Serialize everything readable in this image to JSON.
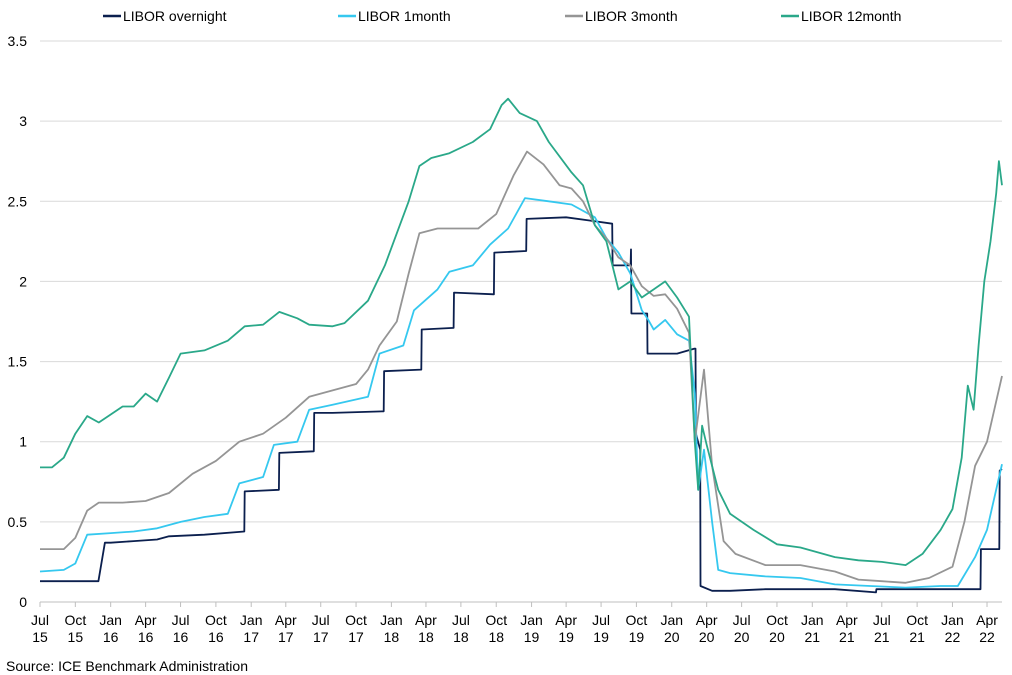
{
  "source_note": "Source: ICE Benchmark Administration",
  "chart_data": {
    "type": "line",
    "ylim": [
      0,
      3.5
    ],
    "y_ticks": [
      "0",
      "0.5",
      "1",
      "1.5",
      "2",
      "2.5",
      "3",
      "3.5"
    ],
    "x_ticks": [
      {
        "month": "Jul",
        "year": "15"
      },
      {
        "month": "Oct",
        "year": "15"
      },
      {
        "month": "Jan",
        "year": "16"
      },
      {
        "month": "Apr",
        "year": "16"
      },
      {
        "month": "Jul",
        "year": "16"
      },
      {
        "month": "Oct",
        "year": "16"
      },
      {
        "month": "Jan",
        "year": "17"
      },
      {
        "month": "Apr",
        "year": "17"
      },
      {
        "month": "Jul",
        "year": "17"
      },
      {
        "month": "Oct",
        "year": "17"
      },
      {
        "month": "Jan",
        "year": "18"
      },
      {
        "month": "Apr",
        "year": "18"
      },
      {
        "month": "Jul",
        "year": "18"
      },
      {
        "month": "Oct",
        "year": "18"
      },
      {
        "month": "Jan",
        "year": "19"
      },
      {
        "month": "Apr",
        "year": "19"
      },
      {
        "month": "Jul",
        "year": "19"
      },
      {
        "month": "Oct",
        "year": "19"
      },
      {
        "month": "Jan",
        "year": "20"
      },
      {
        "month": "Apr",
        "year": "20"
      },
      {
        "month": "Jul",
        "year": "20"
      },
      {
        "month": "Oct",
        "year": "20"
      },
      {
        "month": "Jan",
        "year": "21"
      },
      {
        "month": "Apr",
        "year": "21"
      },
      {
        "month": "Jul",
        "year": "21"
      },
      {
        "month": "Oct",
        "year": "21"
      },
      {
        "month": "Jan",
        "year": "22"
      },
      {
        "month": "Apr",
        "year": "22"
      }
    ],
    "grid": "horizontal",
    "legend_position": "top",
    "series": [
      {
        "name": "LIBOR overnight",
        "color": "#0b1f4e",
        "points": [
          [
            "2015-07-01",
            0.13
          ],
          [
            "2015-09-01",
            0.13
          ],
          [
            "2015-10-01",
            0.13
          ],
          [
            "2015-11-30",
            0.13
          ],
          [
            "2015-12-17",
            0.37
          ],
          [
            "2016-01-01",
            0.37
          ],
          [
            "2016-03-01",
            0.38
          ],
          [
            "2016-05-01",
            0.39
          ],
          [
            "2016-06-01",
            0.41
          ],
          [
            "2016-09-01",
            0.42
          ],
          [
            "2016-12-14",
            0.44
          ],
          [
            "2016-12-15",
            0.69
          ],
          [
            "2017-03-14",
            0.7
          ],
          [
            "2017-03-15",
            0.93
          ],
          [
            "2017-06-13",
            0.94
          ],
          [
            "2017-06-14",
            1.18
          ],
          [
            "2017-08-01",
            1.18
          ],
          [
            "2017-12-12",
            1.19
          ],
          [
            "2017-12-13",
            1.44
          ],
          [
            "2018-03-20",
            1.45
          ],
          [
            "2018-03-21",
            1.7
          ],
          [
            "2018-06-12",
            1.71
          ],
          [
            "2018-06-13",
            1.93
          ],
          [
            "2018-09-25",
            1.92
          ],
          [
            "2018-09-26",
            2.18
          ],
          [
            "2018-12-18",
            2.19
          ],
          [
            "2018-12-19",
            2.39
          ],
          [
            "2019-04-01",
            2.4
          ],
          [
            "2019-06-01",
            2.38
          ],
          [
            "2019-07-30",
            2.36
          ],
          [
            "2019-07-31",
            2.1
          ],
          [
            "2019-09-16",
            2.1
          ],
          [
            "2019-09-17",
            2.2
          ],
          [
            "2019-09-18",
            1.8
          ],
          [
            "2019-10-29",
            1.8
          ],
          [
            "2019-10-30",
            1.55
          ],
          [
            "2020-01-15",
            1.55
          ],
          [
            "2020-02-28",
            1.58
          ],
          [
            "2020-03-03",
            1.58
          ],
          [
            "2020-03-04",
            1.05
          ],
          [
            "2020-03-15",
            0.95
          ],
          [
            "2020-03-16",
            0.1
          ],
          [
            "2020-04-15",
            0.07
          ],
          [
            "2020-06-01",
            0.07
          ],
          [
            "2020-09-01",
            0.08
          ],
          [
            "2020-12-01",
            0.08
          ],
          [
            "2021-03-01",
            0.08
          ],
          [
            "2021-06-16",
            0.06
          ],
          [
            "2021-06-17",
            0.08
          ],
          [
            "2021-09-01",
            0.08
          ],
          [
            "2021-12-01",
            0.08
          ],
          [
            "2022-03-15",
            0.08
          ],
          [
            "2022-03-16",
            0.33
          ],
          [
            "2022-05-03",
            0.33
          ],
          [
            "2022-05-04",
            0.82
          ],
          [
            "2022-05-10",
            0.83
          ]
        ]
      },
      {
        "name": "LIBOR 1month",
        "color": "#35c8ef",
        "points": [
          [
            "2015-07-01",
            0.19
          ],
          [
            "2015-09-01",
            0.2
          ],
          [
            "2015-10-01",
            0.24
          ],
          [
            "2015-11-01",
            0.42
          ],
          [
            "2016-01-01",
            0.43
          ],
          [
            "2016-03-01",
            0.44
          ],
          [
            "2016-05-01",
            0.46
          ],
          [
            "2016-07-01",
            0.5
          ],
          [
            "2016-09-01",
            0.53
          ],
          [
            "2016-11-01",
            0.55
          ],
          [
            "2016-12-01",
            0.74
          ],
          [
            "2017-02-01",
            0.78
          ],
          [
            "2017-03-01",
            0.98
          ],
          [
            "2017-05-01",
            1.0
          ],
          [
            "2017-06-01",
            1.2
          ],
          [
            "2017-08-01",
            1.23
          ],
          [
            "2017-11-01",
            1.28
          ],
          [
            "2017-12-01",
            1.55
          ],
          [
            "2018-02-01",
            1.6
          ],
          [
            "2018-03-01",
            1.82
          ],
          [
            "2018-05-01",
            1.95
          ],
          [
            "2018-06-01",
            2.06
          ],
          [
            "2018-08-01",
            2.1
          ],
          [
            "2018-09-15",
            2.23
          ],
          [
            "2018-11-01",
            2.33
          ],
          [
            "2018-12-15",
            2.52
          ],
          [
            "2019-02-15",
            2.5
          ],
          [
            "2019-04-15",
            2.48
          ],
          [
            "2019-06-15",
            2.4
          ],
          [
            "2019-07-15",
            2.27
          ],
          [
            "2019-08-15",
            2.18
          ],
          [
            "2019-09-15",
            2.05
          ],
          [
            "2019-10-15",
            1.82
          ],
          [
            "2019-11-01",
            1.76
          ],
          [
            "2019-11-15",
            1.7
          ],
          [
            "2019-12-15",
            1.76
          ],
          [
            "2020-01-15",
            1.67
          ],
          [
            "2020-02-15",
            1.63
          ],
          [
            "2020-03-01",
            1.3
          ],
          [
            "2020-03-10",
            0.7
          ],
          [
            "2020-03-25",
            0.95
          ],
          [
            "2020-04-15",
            0.5
          ],
          [
            "2020-05-01",
            0.2
          ],
          [
            "2020-06-01",
            0.18
          ],
          [
            "2020-09-01",
            0.16
          ],
          [
            "2020-12-01",
            0.15
          ],
          [
            "2021-03-01",
            0.11
          ],
          [
            "2021-06-01",
            0.1
          ],
          [
            "2021-09-01",
            0.09
          ],
          [
            "2021-12-01",
            0.1
          ],
          [
            "2022-01-15",
            0.1
          ],
          [
            "2022-03-01",
            0.28
          ],
          [
            "2022-04-01",
            0.45
          ],
          [
            "2022-05-10",
            0.86
          ]
        ]
      },
      {
        "name": "LIBOR 3month",
        "color": "#959595",
        "points": [
          [
            "2015-07-01",
            0.33
          ],
          [
            "2015-09-01",
            0.33
          ],
          [
            "2015-10-01",
            0.4
          ],
          [
            "2015-11-01",
            0.57
          ],
          [
            "2015-12-01",
            0.62
          ],
          [
            "2016-02-01",
            0.62
          ],
          [
            "2016-04-01",
            0.63
          ],
          [
            "2016-06-01",
            0.68
          ],
          [
            "2016-08-01",
            0.8
          ],
          [
            "2016-10-01",
            0.88
          ],
          [
            "2016-12-01",
            1.0
          ],
          [
            "2017-02-01",
            1.05
          ],
          [
            "2017-04-01",
            1.15
          ],
          [
            "2017-06-01",
            1.28
          ],
          [
            "2017-08-01",
            1.32
          ],
          [
            "2017-10-01",
            1.36
          ],
          [
            "2017-11-01",
            1.45
          ],
          [
            "2017-12-01",
            1.6
          ],
          [
            "2018-01-15",
            1.75
          ],
          [
            "2018-02-15",
            2.05
          ],
          [
            "2018-03-15",
            2.3
          ],
          [
            "2018-05-01",
            2.33
          ],
          [
            "2018-06-15",
            2.33
          ],
          [
            "2018-08-15",
            2.33
          ],
          [
            "2018-10-01",
            2.42
          ],
          [
            "2018-11-15",
            2.66
          ],
          [
            "2018-12-20",
            2.81
          ],
          [
            "2019-02-01",
            2.73
          ],
          [
            "2019-03-15",
            2.6
          ],
          [
            "2019-04-15",
            2.58
          ],
          [
            "2019-05-15",
            2.5
          ],
          [
            "2019-06-15",
            2.35
          ],
          [
            "2019-07-15",
            2.27
          ],
          [
            "2019-08-15",
            2.15
          ],
          [
            "2019-09-15",
            2.1
          ],
          [
            "2019-10-15",
            1.97
          ],
          [
            "2019-11-15",
            1.91
          ],
          [
            "2019-12-15",
            1.92
          ],
          [
            "2020-01-15",
            1.83
          ],
          [
            "2020-02-15",
            1.68
          ],
          [
            "2020-03-01",
            1.0
          ],
          [
            "2020-03-25",
            1.45
          ],
          [
            "2020-04-15",
            0.85
          ],
          [
            "2020-05-15",
            0.38
          ],
          [
            "2020-06-15",
            0.3
          ],
          [
            "2020-09-01",
            0.23
          ],
          [
            "2020-12-01",
            0.23
          ],
          [
            "2021-03-01",
            0.19
          ],
          [
            "2021-05-01",
            0.14
          ],
          [
            "2021-07-01",
            0.13
          ],
          [
            "2021-09-01",
            0.12
          ],
          [
            "2021-11-01",
            0.15
          ],
          [
            "2022-01-01",
            0.22
          ],
          [
            "2022-02-01",
            0.5
          ],
          [
            "2022-03-01",
            0.85
          ],
          [
            "2022-04-01",
            1.0
          ],
          [
            "2022-04-20",
            1.2
          ],
          [
            "2022-05-10",
            1.41
          ]
        ]
      },
      {
        "name": "LIBOR 12month",
        "color": "#2aa889",
        "points": [
          [
            "2015-07-01",
            0.84
          ],
          [
            "2015-08-01",
            0.84
          ],
          [
            "2015-09-01",
            0.9
          ],
          [
            "2015-10-01",
            1.05
          ],
          [
            "2015-11-01",
            1.16
          ],
          [
            "2015-12-01",
            1.12
          ],
          [
            "2016-01-01",
            1.17
          ],
          [
            "2016-02-01",
            1.22
          ],
          [
            "2016-03-01",
            1.22
          ],
          [
            "2016-04-01",
            1.3
          ],
          [
            "2016-05-01",
            1.25
          ],
          [
            "2016-06-01",
            1.4
          ],
          [
            "2016-07-01",
            1.55
          ],
          [
            "2016-09-01",
            1.57
          ],
          [
            "2016-11-01",
            1.63
          ],
          [
            "2016-12-15",
            1.72
          ],
          [
            "2017-02-01",
            1.73
          ],
          [
            "2017-03-15",
            1.81
          ],
          [
            "2017-05-01",
            1.77
          ],
          [
            "2017-06-01",
            1.73
          ],
          [
            "2017-08-01",
            1.72
          ],
          [
            "2017-09-01",
            1.74
          ],
          [
            "2017-11-01",
            1.88
          ],
          [
            "2017-12-15",
            2.1
          ],
          [
            "2018-01-15",
            2.3
          ],
          [
            "2018-02-15",
            2.5
          ],
          [
            "2018-03-15",
            2.72
          ],
          [
            "2018-04-15",
            2.77
          ],
          [
            "2018-06-01",
            2.8
          ],
          [
            "2018-08-01",
            2.87
          ],
          [
            "2018-09-15",
            2.95
          ],
          [
            "2018-10-15",
            3.1
          ],
          [
            "2018-11-01",
            3.14
          ],
          [
            "2018-12-01",
            3.05
          ],
          [
            "2019-01-15",
            3.0
          ],
          [
            "2019-02-15",
            2.87
          ],
          [
            "2019-04-15",
            2.68
          ],
          [
            "2019-05-15",
            2.6
          ],
          [
            "2019-06-15",
            2.35
          ],
          [
            "2019-07-15",
            2.25
          ],
          [
            "2019-08-15",
            1.95
          ],
          [
            "2019-09-15",
            2.0
          ],
          [
            "2019-10-15",
            1.9
          ],
          [
            "2019-11-15",
            1.95
          ],
          [
            "2019-12-15",
            2.0
          ],
          [
            "2020-01-15",
            1.9
          ],
          [
            "2020-02-15",
            1.78
          ],
          [
            "2020-03-01",
            1.0
          ],
          [
            "2020-03-10",
            0.7
          ],
          [
            "2020-03-20",
            1.1
          ],
          [
            "2020-04-01",
            0.98
          ],
          [
            "2020-05-01",
            0.7
          ],
          [
            "2020-06-01",
            0.55
          ],
          [
            "2020-08-01",
            0.45
          ],
          [
            "2020-10-01",
            0.36
          ],
          [
            "2020-12-01",
            0.34
          ],
          [
            "2021-03-01",
            0.28
          ],
          [
            "2021-05-01",
            0.26
          ],
          [
            "2021-07-01",
            0.25
          ],
          [
            "2021-09-01",
            0.23
          ],
          [
            "2021-10-15",
            0.3
          ],
          [
            "2021-12-01",
            0.45
          ],
          [
            "2022-01-01",
            0.58
          ],
          [
            "2022-01-25",
            0.9
          ],
          [
            "2022-02-10",
            1.35
          ],
          [
            "2022-02-25",
            1.2
          ],
          [
            "2022-03-10",
            1.6
          ],
          [
            "2022-03-25",
            2.0
          ],
          [
            "2022-04-10",
            2.25
          ],
          [
            "2022-04-25",
            2.55
          ],
          [
            "2022-05-02",
            2.75
          ],
          [
            "2022-05-10",
            2.6
          ]
        ]
      }
    ]
  }
}
